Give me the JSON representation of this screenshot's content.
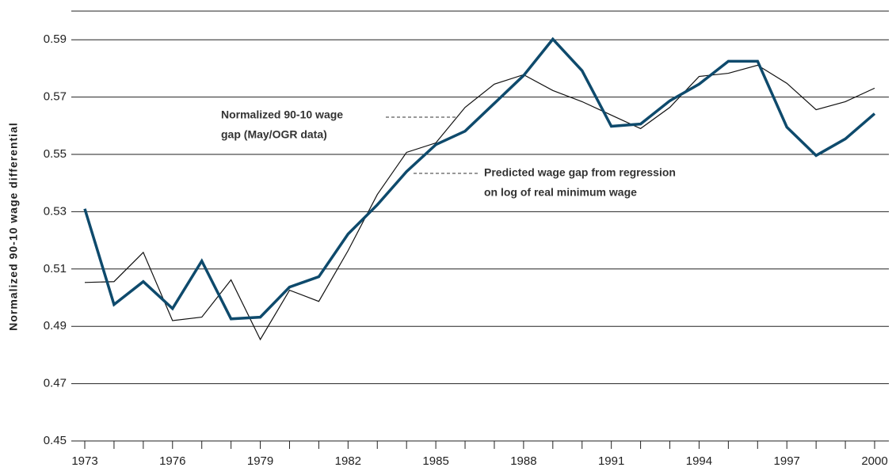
{
  "chart_data": {
    "type": "line",
    "y_label": "Normalized 90-10 wage differential",
    "x": [
      1973,
      1974,
      1975,
      1976,
      1977,
      1978,
      1979,
      1980,
      1981,
      1982,
      1983,
      1984,
      1985,
      1986,
      1987,
      1988,
      1989,
      1990,
      1991,
      1992,
      1993,
      1994,
      1995,
      1996,
      1997,
      1998,
      1999,
      2000
    ],
    "series": [
      {
        "name": "Predicted wage gap from regression on log of real minimum wage",
        "color": "#0e4a6c",
        "width": 3.5,
        "values": [
          0.531,
          0.4976,
          0.5056,
          0.4962,
          0.5128,
          0.4926,
          0.4932,
          0.5037,
          0.5073,
          0.5222,
          0.5324,
          0.544,
          0.5534,
          0.5581,
          0.5678,
          0.5775,
          0.5902,
          0.5792,
          0.5598,
          0.5606,
          0.5687,
          0.5745,
          0.5825,
          0.5825,
          0.5595,
          0.5496,
          0.5554,
          0.5642
        ]
      },
      {
        "name": "Normalized 90-10 wage gap (May/OGR data)",
        "color": "#111111",
        "width": 1.2,
        "values": [
          0.5053,
          0.5056,
          0.5158,
          0.492,
          0.4932,
          0.5062,
          0.4854,
          0.5026,
          0.4987,
          0.5164,
          0.536,
          0.5507,
          0.554,
          0.5664,
          0.5745,
          0.5778,
          0.5723,
          0.5684,
          0.5637,
          0.559,
          0.5664,
          0.5772,
          0.5783,
          0.5811,
          0.5748,
          0.5656,
          0.5684,
          0.5731
        ]
      }
    ],
    "annotations": [
      {
        "lines": [
          "Normalized 90-10 wage",
          "gap (May/OGR data)"
        ]
      },
      {
        "lines": [
          "Predicted wage gap from regression",
          "on log of real minimum wage"
        ]
      }
    ],
    "xlim": [
      1973,
      2000
    ],
    "xticks": [
      1973,
      1976,
      1979,
      1982,
      1985,
      1988,
      1991,
      1994,
      1997,
      2000
    ],
    "ylim": [
      0.45,
      0.6
    ],
    "yticks": [
      0.45,
      0.47,
      0.49,
      0.51,
      0.53,
      0.55,
      0.57,
      0.59
    ],
    "grid": true
  }
}
